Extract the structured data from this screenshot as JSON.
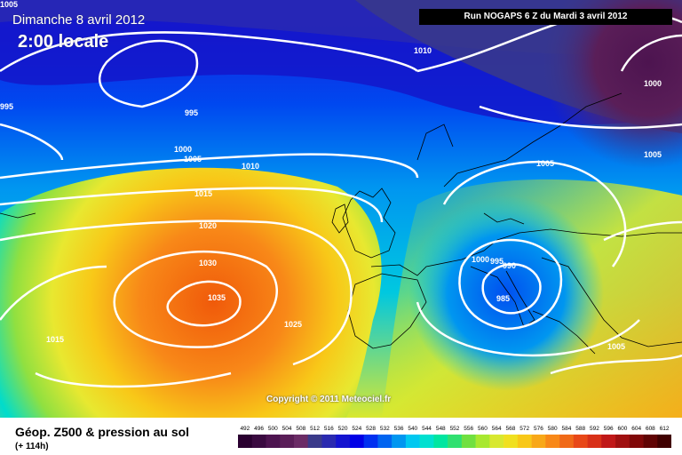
{
  "header": {
    "date": "Dimanche 8 avril 2012",
    "time": "2:00 locale",
    "run": "Run NOGAPS 6 Z du Mardi 3 avril 2012"
  },
  "copyright": "Copyright © 2011 Meteociel.fr",
  "footer": {
    "title": "Géop. Z500 & pression au sol",
    "subtitle": "(+ 114h)"
  },
  "legend": {
    "values": [
      "492",
      "496",
      "500",
      "504",
      "508",
      "512",
      "516",
      "520",
      "524",
      "528",
      "532",
      "536",
      "540",
      "544",
      "548",
      "552",
      "556",
      "560",
      "564",
      "568",
      "572",
      "576",
      "580",
      "584",
      "588",
      "592",
      "596",
      "600",
      "604",
      "608",
      "612"
    ],
    "colors": [
      "#2a0030",
      "#3a0a40",
      "#4d1450",
      "#5a1e58",
      "#6b2c66",
      "#3a3a8a",
      "#2a2ab0",
      "#1414d0",
      "#0000e6",
      "#0030f0",
      "#0064f0",
      "#0096f0",
      "#00c8f0",
      "#00e0d0",
      "#00e6a0",
      "#30e070",
      "#70e040",
      "#a8e830",
      "#d8e830",
      "#f0e020",
      "#f8c818",
      "#f8a818",
      "#f88818",
      "#f06a18",
      "#e84818",
      "#d83018",
      "#c01818",
      "#a01010",
      "#800808",
      "#600404",
      "#400000"
    ]
  },
  "isobar_labels": [
    "1010",
    "1005",
    "995",
    "995",
    "1000",
    "1000",
    "1005",
    "1010",
    "1015",
    "1020",
    "1030",
    "1035",
    "1025",
    "1015",
    "1005",
    "1000",
    "995",
    "990",
    "985",
    "1005",
    "1005"
  ]
}
